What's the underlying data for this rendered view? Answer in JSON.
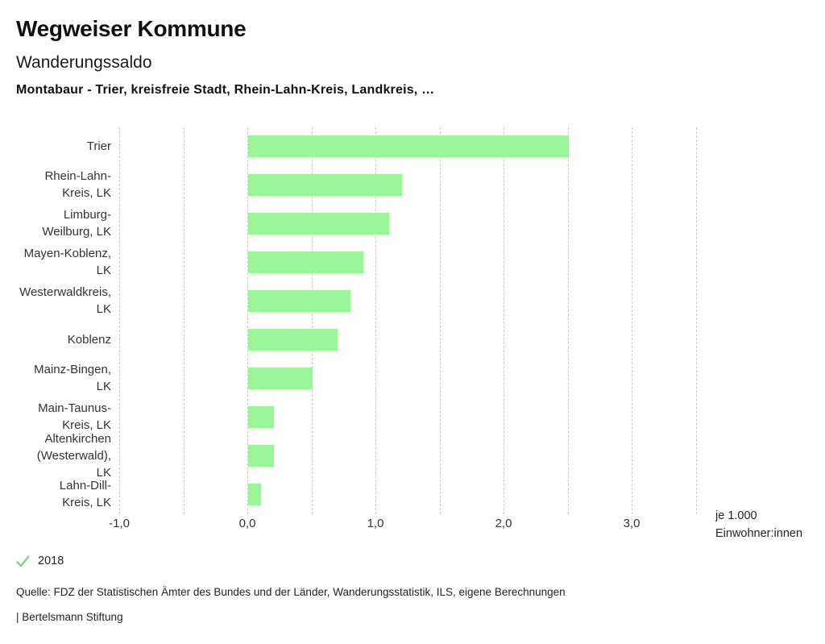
{
  "header": {
    "title": "Wegweiser Kommune",
    "subtitle": "Wanderungssaldo",
    "description": "Montabaur - Trier, kreisfreie Stadt, Rhein-Lahn-Kreis, Landkreis, …"
  },
  "chart_data": {
    "type": "bar",
    "orientation": "horizontal",
    "title": "Wanderungssaldo",
    "categories": [
      "Trier",
      "Rhein-Lahn-Kreis, LK",
      "Limburg-Weilburg, LK",
      "Mayen-Koblenz, LK",
      "Westerwaldkreis, LK",
      "Koblenz",
      "Mainz-Bingen, LK",
      "Main-Taunus-Kreis, LK",
      "Altenkirchen (Westerwald), LK",
      "Lahn-Dill-Kreis, LK"
    ],
    "label_lines": [
      [
        "Trier"
      ],
      [
        "Rhein-Lahn-",
        "Kreis, LK"
      ],
      [
        "Limburg-",
        "Weilburg, LK"
      ],
      [
        "Mayen-Koblenz,",
        "LK"
      ],
      [
        "Westerwaldkreis,",
        "LK"
      ],
      [
        "Koblenz"
      ],
      [
        "Mainz-Bingen,",
        "LK"
      ],
      [
        "Main-Taunus-",
        "Kreis, LK"
      ],
      [
        "Altenkirchen",
        "(Westerwald),",
        "LK"
      ],
      [
        "Lahn-Dill-",
        "Kreis, LK"
      ]
    ],
    "values": [
      2.5,
      1.2,
      1.1,
      0.9,
      0.8,
      0.7,
      0.5,
      0.2,
      0.2,
      0.1
    ],
    "series_year": "2018",
    "xlim": [
      -1.0,
      3.5
    ],
    "gridline_step": 0.5,
    "grid": true,
    "x_ticks": [
      -1,
      0,
      1,
      2,
      3
    ],
    "x_tick_labels": [
      "-1,0",
      "0,0",
      "1,0",
      "2,0",
      "3,0"
    ],
    "xlabel": "je 1.000 Einwohner:innen",
    "unit_label_line1": "je 1.000",
    "unit_label_line2": "Einwohner:innen",
    "bar_color": "#98f698"
  },
  "legend": {
    "year": "2018",
    "check_color": "#7cd67c"
  },
  "footer": {
    "source": "Quelle: FDZ der Statistischen Ämter des Bundes und der Länder, Wanderungsstatistik, ILS, eigene Berechnungen",
    "attribution": "| Bertelsmann Stiftung"
  }
}
